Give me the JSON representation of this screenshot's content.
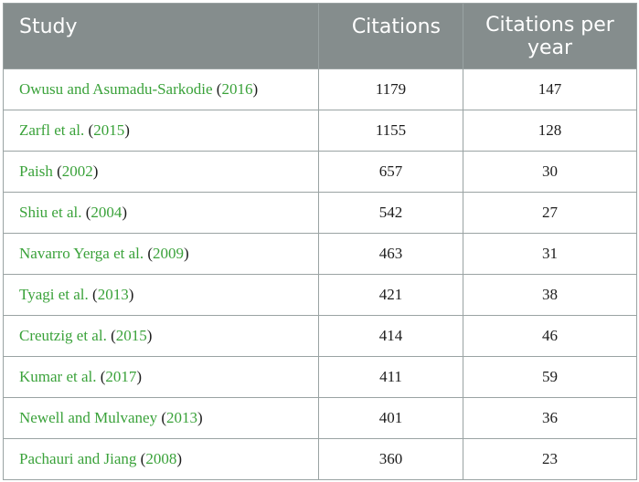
{
  "headers": [
    "Study",
    "Citations",
    "Citations per year"
  ],
  "rows": [
    {
      "study": "Owusu and Asumadu-Sarkodie",
      "year": "2016",
      "citations": "1179",
      "per_year": "147"
    },
    {
      "study": "Zarfl et al.",
      "year": "2015",
      "citations": "1155",
      "per_year": "128"
    },
    {
      "study": "Paish",
      "year": "2002",
      "citations": "657",
      "per_year": "30"
    },
    {
      "study": "Shiu et al.",
      "year": "2004",
      "citations": "542",
      "per_year": "27"
    },
    {
      "study": "Navarro Yerga et al.",
      "year": "2009",
      "citations": "463",
      "per_year": "31"
    },
    {
      "study": "Tyagi et al.",
      "year": "2013",
      "citations": "421",
      "per_year": "38"
    },
    {
      "study": "Creutzig et al.",
      "year": "2015",
      "citations": "414",
      "per_year": "46"
    },
    {
      "study": "Kumar et al.",
      "year": "2017",
      "citations": "411",
      "per_year": "59"
    },
    {
      "study": "Newell and Mulvaney",
      "year": "2013",
      "citations": "401",
      "per_year": "36"
    },
    {
      "study": "Pachauri and Jiang",
      "year": "2008",
      "citations": "360",
      "per_year": "23"
    }
  ]
}
